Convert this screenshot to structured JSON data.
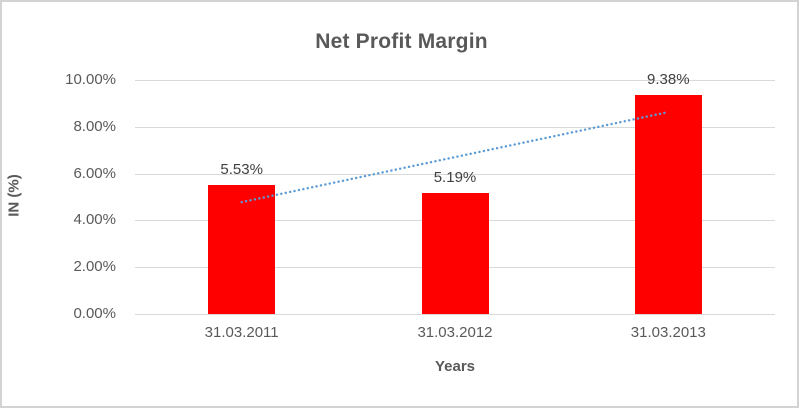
{
  "chart_data": {
    "type": "bar",
    "title": "Net Profit Margin",
    "xlabel": "Years",
    "ylabel": "IN (%)",
    "categories": [
      "31.03.2011",
      "31.03.2012",
      "31.03.2013"
    ],
    "values": [
      5.53,
      5.19,
      9.38
    ],
    "value_labels": [
      "5.53%",
      "5.19%",
      "9.38%"
    ],
    "ylim": [
      0,
      10
    ],
    "ytick_step": 2,
    "ytick_labels": [
      "0.00%",
      "2.00%",
      "4.00%",
      "6.00%",
      "8.00%",
      "10.00%"
    ],
    "grid": true,
    "legend": "none",
    "bar_color": "#ff0000",
    "gridline_color": "#d9d9d9",
    "text_color": "#595959",
    "data_label_color": "#404040",
    "trendline": {
      "type": "linear",
      "style": "dotted",
      "color": "#5b9bd5",
      "start_value": 4.78,
      "end_value": 8.63
    }
  }
}
